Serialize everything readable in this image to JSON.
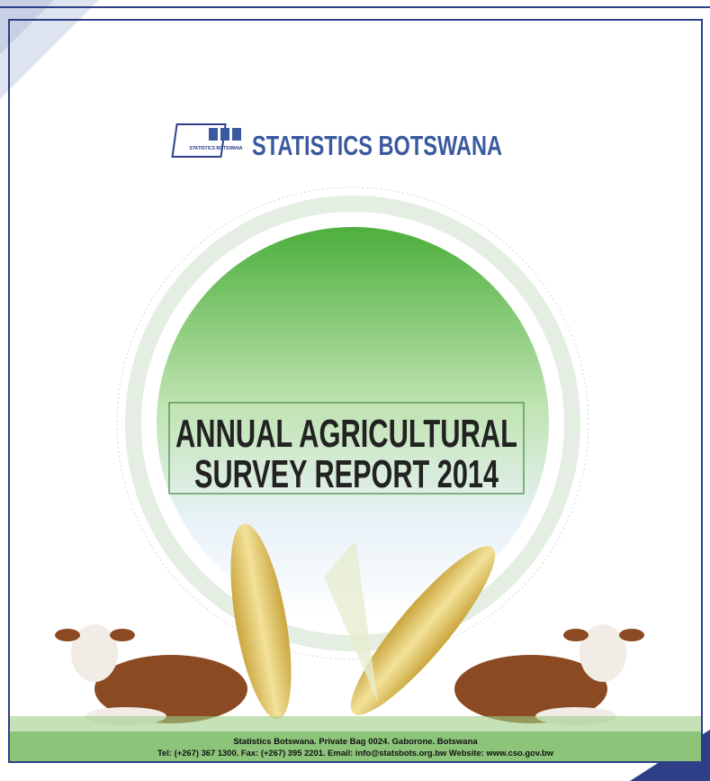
{
  "header": {
    "logo_text": "STATISTICS BOTSWANA",
    "organization": "STATISTICS BOTSWANA"
  },
  "title": {
    "lines": [
      "ANNUAL AGRICULTURAL",
      "SURVEY REPORT 2014"
    ]
  },
  "footer": {
    "lines": [
      "Statistics Botswana. Private Bag 0024. Gaborone. Botswana",
      "Tel: (+267) 367 1300.  Fax: (+267) 395 2201. Email: info@statsbots.org.bw Website: www.cso.gov.bw"
    ]
  }
}
